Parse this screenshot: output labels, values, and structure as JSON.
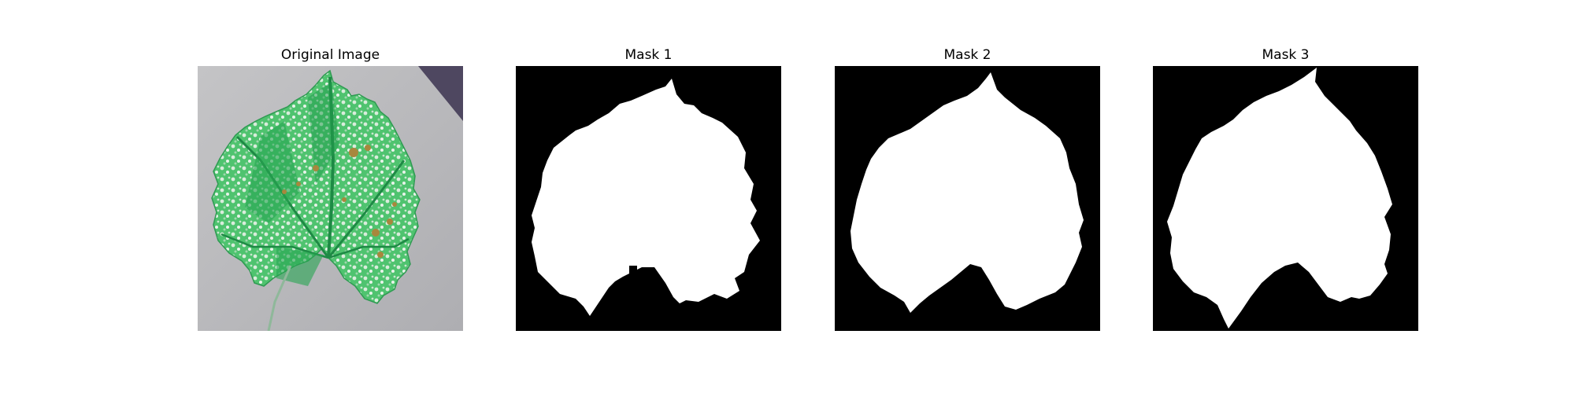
{
  "panels": [
    {
      "title": "Original Image"
    },
    {
      "title": "Mask 1"
    },
    {
      "title": "Mask 2"
    },
    {
      "title": "Mask 3"
    }
  ],
  "colors": {
    "background_gray": "#b9b9bb",
    "corner_purple": "#4e4760",
    "leaf_green": "#2fb45a",
    "leaf_light": "#cfe9d3",
    "lesion_brown": "#a8873d",
    "mask_background": "#000000",
    "mask_foreground": "#ffffff"
  }
}
